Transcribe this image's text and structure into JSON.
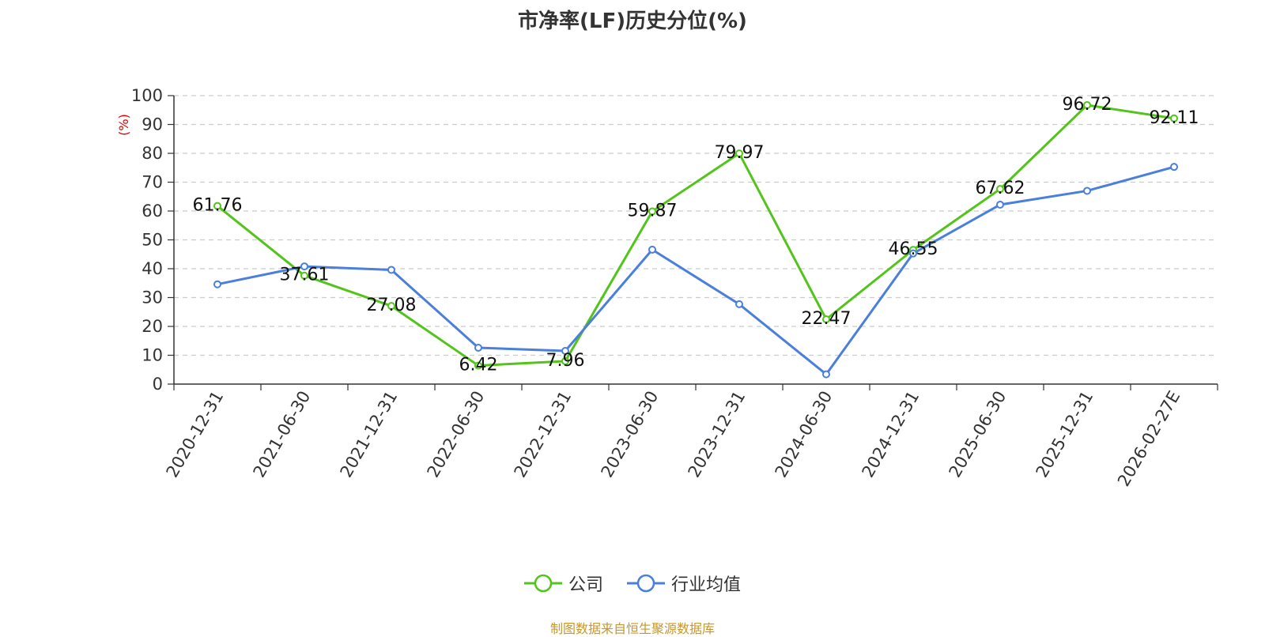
{
  "chart_data": {
    "type": "line",
    "title": "市净率(LF)历史分位(%)",
    "ylabel": "(%)",
    "xlabel": "",
    "ylim": [
      0,
      100
    ],
    "yticks": [
      0,
      10,
      20,
      30,
      40,
      50,
      60,
      70,
      80,
      90,
      100
    ],
    "grid": true,
    "legend_position": "bottom",
    "categories": [
      "2020-12-31",
      "2021-06-30",
      "2021-12-31",
      "2022-06-30",
      "2022-12-31",
      "2023-06-30",
      "2023-12-31",
      "2024-06-30",
      "2024-12-31",
      "2025-06-30",
      "2025-12-31",
      "2026-02-27E"
    ],
    "series": [
      {
        "name": "公司",
        "color": "#52c41a",
        "values": [
          61.76,
          37.61,
          27.08,
          6.42,
          7.96,
          59.87,
          79.97,
          22.47,
          46.55,
          67.62,
          96.72,
          92.11
        ],
        "labels": [
          "61.76",
          "37.61",
          "27.08",
          "6.42",
          "7.96",
          "59.87",
          "79.97",
          "22.47",
          "46.55",
          "67.62",
          "96.72",
          "92.11"
        ]
      },
      {
        "name": "行业均值",
        "color": "#4a7fdc",
        "values": [
          34.6,
          40.8,
          39.6,
          12.6,
          11.5,
          46.6,
          27.7,
          3.4,
          45.3,
          62.2,
          67.0,
          75.3
        ]
      }
    ]
  },
  "footer": {
    "source": "制图数据来自恒生聚源数据库"
  }
}
